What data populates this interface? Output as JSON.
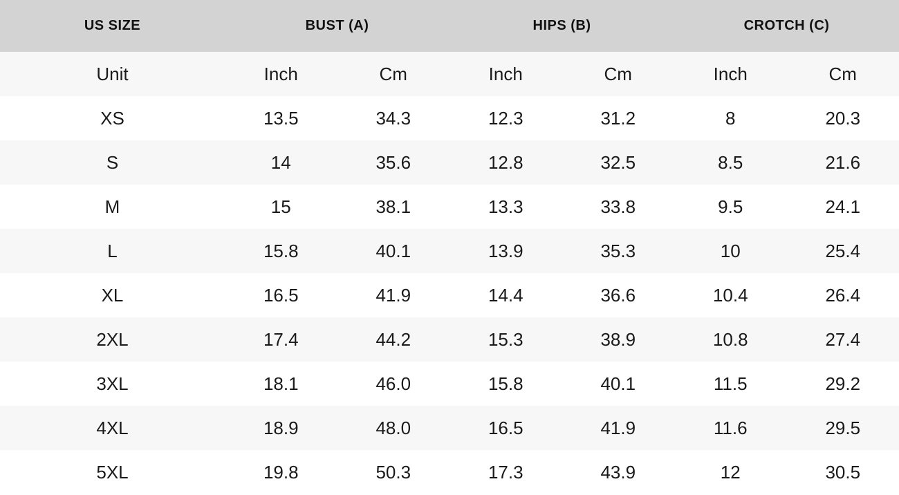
{
  "table": {
    "column_groups": [
      {
        "label": "US SIZE",
        "span": 1
      },
      {
        "label": "BUST (A)",
        "span": 2
      },
      {
        "label": "HIPS (B)",
        "span": 2
      },
      {
        "label": "CROTCH (C)",
        "span": 2
      }
    ],
    "unit_row": {
      "label": "Unit",
      "units": [
        "Inch",
        "Cm",
        "Inch",
        "Cm",
        "Inch",
        "Cm"
      ]
    },
    "rows": [
      {
        "size": "XS",
        "values": [
          "13.5",
          "34.3",
          "12.3",
          "31.2",
          "8",
          "20.3"
        ]
      },
      {
        "size": "S",
        "values": [
          "14",
          "35.6",
          "12.8",
          "32.5",
          "8.5",
          "21.6"
        ]
      },
      {
        "size": "M",
        "values": [
          "15",
          "38.1",
          "13.3",
          "33.8",
          "9.5",
          "24.1"
        ]
      },
      {
        "size": "L",
        "values": [
          "15.8",
          "40.1",
          "13.9",
          "35.3",
          "10",
          "25.4"
        ]
      },
      {
        "size": "XL",
        "values": [
          "16.5",
          "41.9",
          "14.4",
          "36.6",
          "10.4",
          "26.4"
        ]
      },
      {
        "size": "2XL",
        "values": [
          "17.4",
          "44.2",
          "15.3",
          "38.9",
          "10.8",
          "27.4"
        ]
      },
      {
        "size": "3XL",
        "values": [
          "18.1",
          "46.0",
          "15.8",
          "40.1",
          "11.5",
          "29.2"
        ]
      },
      {
        "size": "4XL",
        "values": [
          "18.9",
          "48.0",
          "16.5",
          "41.9",
          "11.6",
          "29.5"
        ]
      },
      {
        "size": "5XL",
        "values": [
          "19.8",
          "50.3",
          "17.3",
          "43.9",
          "12",
          "30.5"
        ]
      }
    ],
    "colors": {
      "header_bg": "#d3d3d3",
      "row_alt_bg": "#f7f7f7",
      "row_bg": "#ffffff",
      "text": "#1a1a1a"
    }
  }
}
